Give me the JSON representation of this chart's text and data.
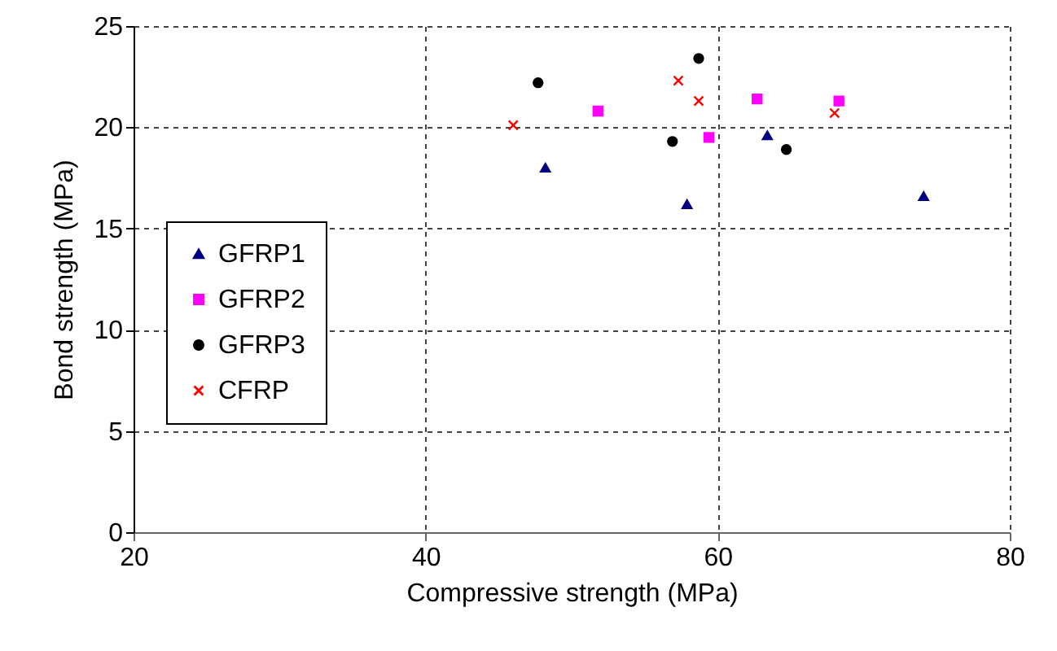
{
  "chart_data": {
    "type": "scatter",
    "xlabel": "Compressive strength (MPa)",
    "ylabel": "Bond strength (MPa)",
    "xlim": [
      20,
      80
    ],
    "xticks": [
      20,
      40,
      60,
      80
    ],
    "ylim": [
      0,
      25
    ],
    "yticks": [
      0,
      5,
      10,
      15,
      20,
      25
    ],
    "grid": true,
    "legend": "bottom left",
    "series": [
      {
        "name": "GFRP1",
        "color": "#000080",
        "marker": "triangle",
        "x": [
          48.2,
          57.9,
          63.4,
          74.1
        ],
        "values": [
          18.0,
          16.2,
          19.6,
          16.6
        ]
      },
      {
        "name": "GFRP2",
        "color": "#ff00ff",
        "marker": "square",
        "x": [
          51.8,
          59.4,
          62.7,
          68.3
        ],
        "values": [
          20.8,
          19.5,
          21.4,
          21.3
        ]
      },
      {
        "name": "GFRP3",
        "color": "#000000",
        "marker": "circle",
        "x": [
          47.7,
          56.9,
          58.7,
          64.7
        ],
        "values": [
          22.2,
          19.3,
          23.4,
          18.9
        ]
      },
      {
        "name": "CFRP",
        "color": "#ff0000",
        "marker": "cross",
        "x": [
          46.0,
          57.3,
          58.7,
          68.0
        ],
        "values": [
          20.1,
          22.3,
          21.3,
          20.7
        ]
      }
    ]
  }
}
